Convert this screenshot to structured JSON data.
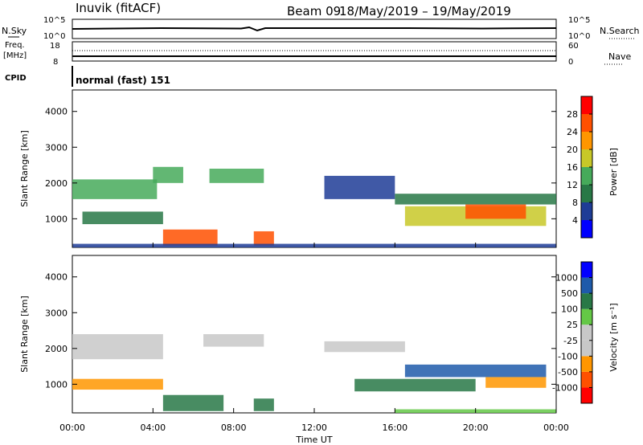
{
  "header": {
    "station": "Inuvik (fitACF)",
    "beam_label": "Beam 09",
    "date_range": "18/May/2019 – 19/May/2019"
  },
  "summary_panels": {
    "nsky": {
      "label": "N.Sky",
      "ticks": [
        "10^5",
        "10^0"
      ]
    },
    "nsearch": {
      "label": "N.Search",
      "ticks": [
        "10^5",
        "10^0"
      ]
    },
    "freq": {
      "label_line1": "Freq.",
      "label_line2": "[MHz]",
      "ticks": [
        "18",
        "8"
      ]
    },
    "nave": {
      "label": "Nave",
      "ticks": [
        "60",
        "0"
      ]
    },
    "cpid": {
      "label": "CPID",
      "mode": "normal (fast) 151"
    }
  },
  "chart_data": [
    {
      "type": "heatmap",
      "title": "",
      "xlabel": "Time UT",
      "ylabel": "Slant Range [km]",
      "xlim": [
        0,
        24
      ],
      "ylim": [
        200,
        4600
      ],
      "xticks": [
        "00:00",
        "04:00",
        "08:00",
        "12:00",
        "16:00",
        "20:00",
        "00:00"
      ],
      "yticks": [
        1000,
        2000,
        3000,
        4000
      ],
      "colorbar": {
        "label": "Power [dB]",
        "ticks": [
          "28",
          "24",
          "20",
          "16",
          "12",
          "8",
          "4"
        ],
        "colors": [
          "#0000ff",
          "#1e3c96",
          "#287846",
          "#46aa5a",
          "#c8c828",
          "#ff9600",
          "#ff5000",
          "#ff0000"
        ]
      },
      "bands": [
        {
          "t_start": 0.0,
          "t_end": 4.2,
          "r_start": 1550,
          "r_end": 2100,
          "value": 14
        },
        {
          "t_start": 4.0,
          "t_end": 5.5,
          "r_start": 2000,
          "r_end": 2450,
          "value": 12
        },
        {
          "t_start": 6.8,
          "t_end": 9.5,
          "r_start": 2000,
          "r_end": 2400,
          "value": 12
        },
        {
          "t_start": 0.5,
          "t_end": 4.5,
          "r_start": 850,
          "r_end": 1200,
          "value": 10
        },
        {
          "t_start": 4.5,
          "t_end": 7.2,
          "r_start": 250,
          "r_end": 700,
          "value": 24
        },
        {
          "t_start": 9.0,
          "t_end": 10.0,
          "r_start": 250,
          "r_end": 650,
          "value": 26
        },
        {
          "t_start": 12.5,
          "t_end": 16.0,
          "r_start": 1550,
          "r_end": 2200,
          "value": 6
        },
        {
          "t_start": 16.0,
          "t_end": 24.0,
          "r_start": 1400,
          "r_end": 1700,
          "value": 10
        },
        {
          "t_start": 16.5,
          "t_end": 23.5,
          "r_start": 800,
          "r_end": 1350,
          "value": 16
        },
        {
          "t_start": 19.5,
          "t_end": 22.5,
          "r_start": 1000,
          "r_end": 1400,
          "value": 26
        },
        {
          "t_start": 0.0,
          "t_end": 24.0,
          "r_start": 200,
          "r_end": 300,
          "value": 5
        }
      ]
    },
    {
      "type": "heatmap",
      "title": "",
      "xlabel": "Time UT",
      "ylabel": "Slant Range [km]",
      "xlim": [
        0,
        24
      ],
      "ylim": [
        200,
        4600
      ],
      "xticks": [
        "00:00",
        "04:00",
        "08:00",
        "12:00",
        "16:00",
        "20:00",
        "00:00"
      ],
      "yticks": [
        1000,
        2000,
        3000,
        4000
      ],
      "colorbar": {
        "label": "Velocity [m s⁻¹]",
        "ticks": [
          "1000",
          "500",
          "100",
          "25",
          "-25",
          "-100",
          "-500",
          "-1000"
        ],
        "colors": [
          "#ff0000",
          "#ff5000",
          "#ff9600",
          "#c8c8c8",
          "#c8c8c8",
          "#64c846",
          "#287846",
          "#1e5aaa",
          "#0000ff"
        ]
      },
      "bands": [
        {
          "t_start": 0.0,
          "t_end": 4.5,
          "r_start": 1700,
          "r_end": 2400,
          "value": 0
        },
        {
          "t_start": 6.5,
          "t_end": 9.5,
          "r_start": 2050,
          "r_end": 2400,
          "value": 0
        },
        {
          "t_start": 0.0,
          "t_end": 4.5,
          "r_start": 850,
          "r_end": 1150,
          "value": -300
        },
        {
          "t_start": 4.5,
          "t_end": 7.5,
          "r_start": 250,
          "r_end": 700,
          "value": 150
        },
        {
          "t_start": 9.0,
          "t_end": 10.0,
          "r_start": 250,
          "r_end": 600,
          "value": 150
        },
        {
          "t_start": 12.5,
          "t_end": 16.5,
          "r_start": 1900,
          "r_end": 2200,
          "value": 0
        },
        {
          "t_start": 16.5,
          "t_end": 23.5,
          "r_start": 1200,
          "r_end": 1550,
          "value": 700
        },
        {
          "t_start": 20.5,
          "t_end": 23.5,
          "r_start": 900,
          "r_end": 1200,
          "value": -400
        },
        {
          "t_start": 14.0,
          "t_end": 20.0,
          "r_start": 800,
          "r_end": 1150,
          "value": 120
        },
        {
          "t_start": 16.0,
          "t_end": 24.0,
          "r_start": 200,
          "r_end": 300,
          "value": 40
        }
      ]
    }
  ]
}
